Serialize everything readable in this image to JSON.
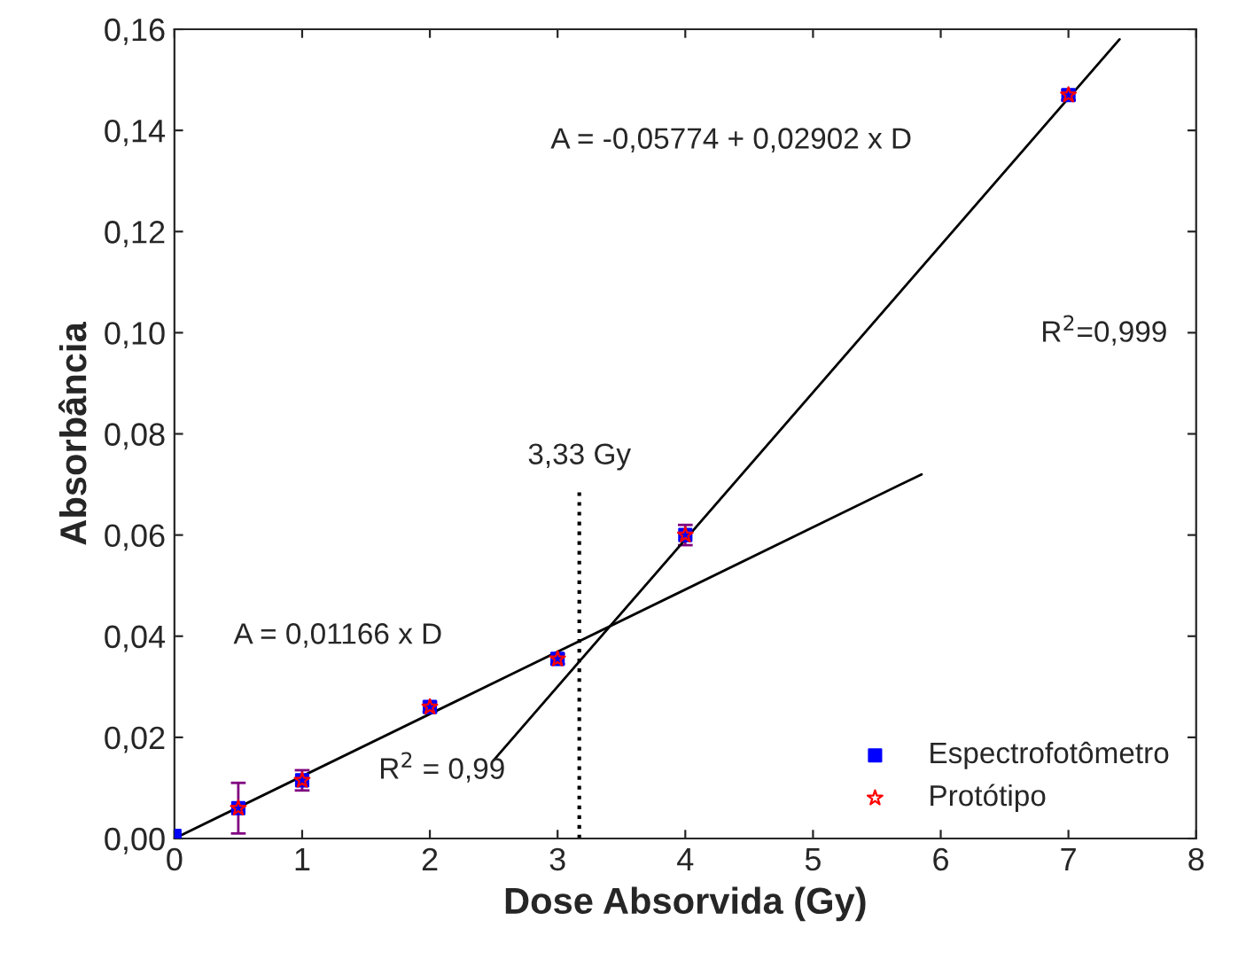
{
  "chart_data": {
    "type": "scatter",
    "xlabel": "Dose Absorvida (Gy)",
    "ylabel": "Absorbância",
    "xlim": [
      0,
      8
    ],
    "xticks": [
      0,
      1,
      2,
      3,
      4,
      5,
      6,
      7,
      8
    ],
    "ylim": [
      0,
      0.16
    ],
    "yticks": [
      {
        "value": 0,
        "label": "0,00"
      },
      {
        "value": 0.02,
        "label": "0,02"
      },
      {
        "value": 0.04,
        "label": "0,04"
      },
      {
        "value": 0.06,
        "label": "0,06"
      },
      {
        "value": 0.08,
        "label": "0,08"
      },
      {
        "value": 0.1,
        "label": "0,10"
      },
      {
        "value": 0.12,
        "label": "0,12"
      },
      {
        "value": 0.14,
        "label": "0,14"
      },
      {
        "value": 0.16,
        "label": "0,16"
      }
    ],
    "grid": false,
    "legend": "bottom right",
    "series": [
      {
        "name": "Espectrofotômetro",
        "color": "#0000ff",
        "marker": "square",
        "x": [
          0,
          0.5,
          1,
          2,
          3,
          4,
          7
        ],
        "values": [
          0.0005,
          0.006,
          0.0115,
          0.026,
          0.0355,
          0.06,
          0.147
        ],
        "errors": [
          null,
          0.005,
          0.002,
          0.001,
          0.001,
          0.002,
          0.001
        ]
      },
      {
        "name": "Protótipo",
        "color": "#ff0000",
        "marker": "star",
        "x": [
          0.5,
          1,
          2,
          3,
          4,
          7
        ],
        "values": [
          0.006,
          0.0115,
          0.026,
          0.0355,
          0.06,
          0.147
        ]
      },
      {
        "type": "line",
        "color": "#000000",
        "x": [
          0,
          5.85
        ],
        "values": [
          0,
          0.072
        ]
      },
      {
        "type": "line",
        "color": "#000000",
        "x": [
          2.5,
          7.4
        ],
        "values": [
          0.0155,
          0.158
        ]
      }
    ],
    "ref_lines": [
      {
        "axis": "x",
        "value": 3.17,
        "label": "3,33 Gy",
        "line_style": "dotted",
        "color": "#000000"
      }
    ],
    "annotations": [
      "A = -0,05774 + 0,02902 x D",
      "R$^{2}$=0,999",
      "A = 0,01166 x D",
      "R$^{2}$ = 0,99"
    ]
  }
}
